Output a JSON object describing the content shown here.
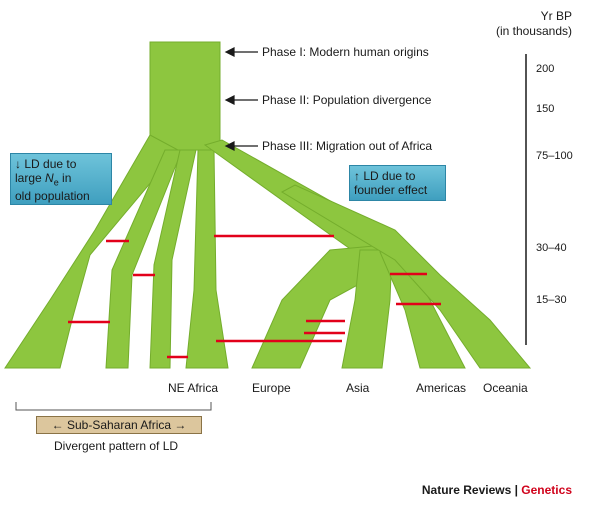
{
  "phases": [
    {
      "label": "Phase I: Modern human origins"
    },
    {
      "label": "Phase II: Population divergence"
    },
    {
      "label": "Phase III: Migration out of Africa"
    }
  ],
  "timescale": {
    "title_line1": "Yr BP",
    "title_line2": "(in thousands)",
    "ticks": [
      "200",
      "150",
      "75–100",
      "30–40",
      "15–30"
    ]
  },
  "ld_left": {
    "arrow": "↓",
    "line1": "LD due to",
    "line2_pre": "large ",
    "ne_symbol": "N",
    "ne_sub": "e",
    "line2_post": " in",
    "line3": "old population"
  },
  "ld_right": {
    "arrow": "↑",
    "line1": "LD due to",
    "line2": "founder effect"
  },
  "regions": {
    "ne_africa": "NE Africa",
    "europe": "Europe",
    "asia": "Asia",
    "americas": "Americas",
    "oceania": "Oceania"
  },
  "sub_saharan": {
    "label": "Sub-Saharan Africa",
    "arrow_left": "←",
    "arrow_right": "→",
    "caption": "Divergent pattern of LD"
  },
  "footer": {
    "brand": "Nature Reviews",
    "separator": " | ",
    "journal": "Genetics"
  },
  "colors": {
    "branch": "#8dc63f",
    "branch_edge": "#5f9a1c",
    "migration_line": "#e2001a",
    "ld_box": "#4aa8c8",
    "ssa_box": "#dcc69d"
  }
}
